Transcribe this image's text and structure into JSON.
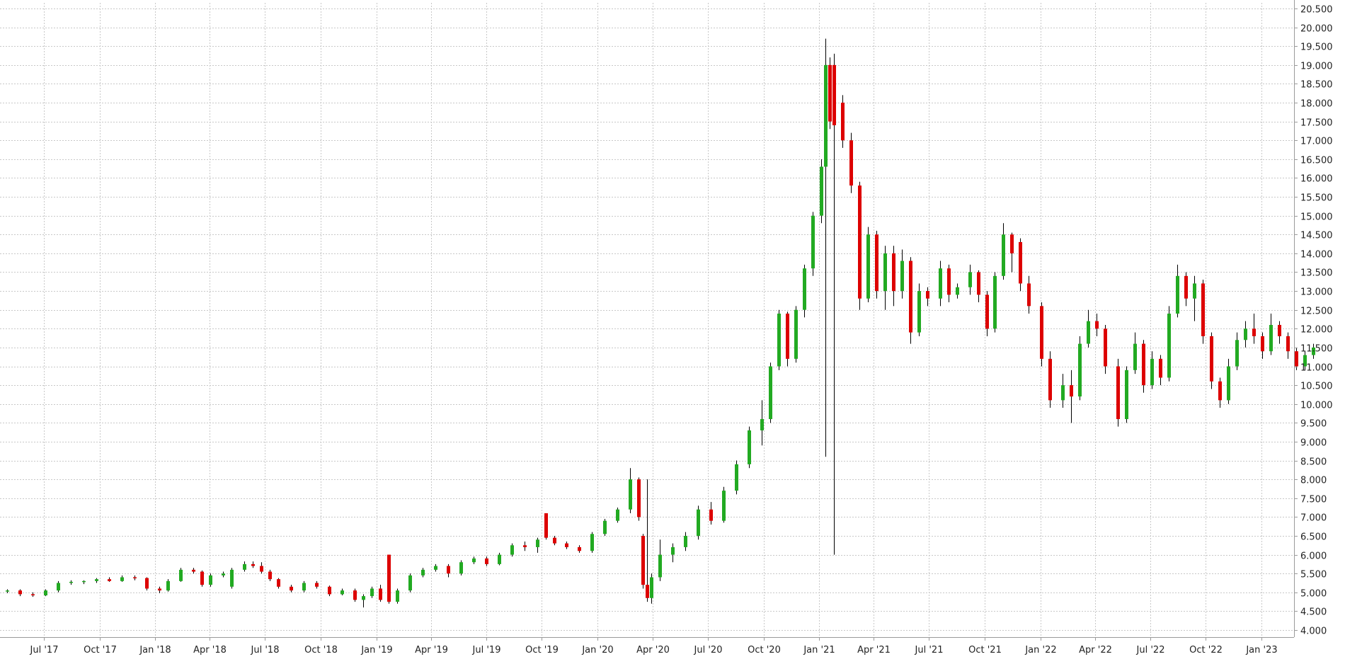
{
  "chart_data": {
    "type": "candlestick",
    "title": "",
    "xlabel": "",
    "ylabel": "",
    "ylim": [
      3.8,
      20.6
    ],
    "grid": true,
    "colors": {
      "up": "#22aa22",
      "down": "#dd0000",
      "wick": "#000000"
    },
    "yticks": [
      "4.000",
      "4.500",
      "5.000",
      "5.500",
      "6.000",
      "6.500",
      "7.000",
      "7.500",
      "8.000",
      "8.500",
      "9.000",
      "9.500",
      "10.000",
      "10.500",
      "11.000",
      "11.500",
      "12.000",
      "12.500",
      "13.000",
      "13.500",
      "14.000",
      "14.500",
      "15.000",
      "15.500",
      "16.000",
      "16.500",
      "17.000",
      "17.500",
      "18.000",
      "18.500",
      "19.000",
      "19.500",
      "20.000",
      "20.500"
    ],
    "xticks": [
      "Jul '17",
      "Oct '17",
      "Jan '18",
      "Apr '18",
      "Jul '18",
      "Oct '18",
      "Jan '19",
      "Apr '19",
      "Jul '19",
      "Oct '19",
      "Jan '20",
      "Apr '20",
      "Jul '20",
      "Oct '20",
      "Jan '21",
      "Apr '21",
      "Jul '21",
      "Oct '21",
      "Jan '22",
      "Apr '22",
      "Jul '22",
      "Oct '22",
      "Jan '23"
    ],
    "xtick_dates": [
      "2017-07-01",
      "2017-10-01",
      "2018-01-01",
      "2018-04-01",
      "2018-07-01",
      "2018-10-01",
      "2019-01-01",
      "2019-04-01",
      "2019-07-01",
      "2019-10-01",
      "2020-01-01",
      "2020-04-01",
      "2020-07-01",
      "2020-10-01",
      "2021-01-01",
      "2021-04-01",
      "2021-07-01",
      "2021-10-01",
      "2022-01-01",
      "2022-04-01",
      "2022-07-01",
      "2022-10-01",
      "2023-01-01"
    ],
    "date_range": [
      "2017-05-01",
      "2023-03-27"
    ],
    "candles": [
      {
        "d": "2017-05-01",
        "o": 5.02,
        "h": 5.08,
        "l": 4.98,
        "c": 5.05
      },
      {
        "d": "2017-05-22",
        "o": 5.05,
        "h": 5.08,
        "l": 4.9,
        "c": 4.95
      },
      {
        "d": "2017-06-12",
        "o": 4.95,
        "h": 5.0,
        "l": 4.88,
        "c": 4.92
      },
      {
        "d": "2017-07-03",
        "o": 4.92,
        "h": 5.08,
        "l": 4.9,
        "c": 5.05
      },
      {
        "d": "2017-07-24",
        "o": 5.05,
        "h": 5.3,
        "l": 5.0,
        "c": 5.25
      },
      {
        "d": "2017-08-14",
        "o": 5.25,
        "h": 5.32,
        "l": 5.2,
        "c": 5.28
      },
      {
        "d": "2017-09-04",
        "o": 5.28,
        "h": 5.32,
        "l": 5.22,
        "c": 5.3
      },
      {
        "d": "2017-09-25",
        "o": 5.3,
        "h": 5.38,
        "l": 5.25,
        "c": 5.35
      },
      {
        "d": "2017-10-16",
        "o": 5.35,
        "h": 5.4,
        "l": 5.28,
        "c": 5.3
      },
      {
        "d": "2017-11-06",
        "o": 5.3,
        "h": 5.45,
        "l": 5.28,
        "c": 5.4
      },
      {
        "d": "2017-11-27",
        "o": 5.4,
        "h": 5.45,
        "l": 5.32,
        "c": 5.38
      },
      {
        "d": "2017-12-18",
        "o": 5.38,
        "h": 5.4,
        "l": 5.05,
        "c": 5.1
      },
      {
        "d": "2018-01-08",
        "o": 5.1,
        "h": 5.15,
        "l": 4.98,
        "c": 5.05
      },
      {
        "d": "2018-01-22",
        "o": 5.05,
        "h": 5.35,
        "l": 5.02,
        "c": 5.3
      },
      {
        "d": "2018-02-12",
        "o": 5.3,
        "h": 5.65,
        "l": 5.28,
        "c": 5.6
      },
      {
        "d": "2018-03-05",
        "o": 5.6,
        "h": 5.65,
        "l": 5.5,
        "c": 5.55
      },
      {
        "d": "2018-03-19",
        "o": 5.55,
        "h": 5.58,
        "l": 5.15,
        "c": 5.2
      },
      {
        "d": "2018-04-02",
        "o": 5.2,
        "h": 5.5,
        "l": 5.15,
        "c": 5.45
      },
      {
        "d": "2018-04-23",
        "o": 5.45,
        "h": 5.55,
        "l": 5.4,
        "c": 5.5
      },
      {
        "d": "2018-05-07",
        "o": 5.15,
        "h": 5.65,
        "l": 5.1,
        "c": 5.6
      },
      {
        "d": "2018-05-28",
        "o": 5.6,
        "h": 5.82,
        "l": 5.55,
        "c": 5.75
      },
      {
        "d": "2018-06-11",
        "o": 5.75,
        "h": 5.82,
        "l": 5.65,
        "c": 5.7
      },
      {
        "d": "2018-06-25",
        "o": 5.7,
        "h": 5.8,
        "l": 5.5,
        "c": 5.55
      },
      {
        "d": "2018-07-09",
        "o": 5.55,
        "h": 5.6,
        "l": 5.3,
        "c": 5.35
      },
      {
        "d": "2018-07-23",
        "o": 5.35,
        "h": 5.38,
        "l": 5.1,
        "c": 5.15
      },
      {
        "d": "2018-08-13",
        "o": 5.15,
        "h": 5.2,
        "l": 5.0,
        "c": 5.05
      },
      {
        "d": "2018-09-03",
        "o": 5.05,
        "h": 5.3,
        "l": 5.0,
        "c": 5.25
      },
      {
        "d": "2018-09-24",
        "o": 5.25,
        "h": 5.3,
        "l": 5.1,
        "c": 5.15
      },
      {
        "d": "2018-10-15",
        "o": 5.15,
        "h": 5.18,
        "l": 4.9,
        "c": 4.95
      },
      {
        "d": "2018-11-05",
        "o": 4.95,
        "h": 5.1,
        "l": 4.92,
        "c": 5.05
      },
      {
        "d": "2018-11-26",
        "o": 5.05,
        "h": 5.1,
        "l": 4.75,
        "c": 4.8
      },
      {
        "d": "2018-12-10",
        "o": 4.8,
        "h": 4.95,
        "l": 4.6,
        "c": 4.9
      },
      {
        "d": "2018-12-24",
        "o": 4.9,
        "h": 5.15,
        "l": 4.85,
        "c": 5.1
      },
      {
        "d": "2019-01-07",
        "o": 5.1,
        "h": 5.2,
        "l": 4.75,
        "c": 4.8
      },
      {
        "d": "2019-01-21",
        "o": 6.0,
        "h": 6.0,
        "l": 4.7,
        "c": 4.75
      },
      {
        "d": "2019-02-04",
        "o": 4.75,
        "h": 5.1,
        "l": 4.7,
        "c": 5.05
      },
      {
        "d": "2019-02-25",
        "o": 5.05,
        "h": 5.5,
        "l": 5.0,
        "c": 5.45
      },
      {
        "d": "2019-03-18",
        "o": 5.45,
        "h": 5.65,
        "l": 5.4,
        "c": 5.6
      },
      {
        "d": "2019-04-08",
        "o": 5.6,
        "h": 5.75,
        "l": 5.55,
        "c": 5.7
      },
      {
        "d": "2019-04-29",
        "o": 5.7,
        "h": 5.75,
        "l": 5.4,
        "c": 5.5
      },
      {
        "d": "2019-05-20",
        "o": 5.5,
        "h": 5.85,
        "l": 5.45,
        "c": 5.8
      },
      {
        "d": "2019-06-10",
        "o": 5.8,
        "h": 5.95,
        "l": 5.75,
        "c": 5.9
      },
      {
        "d": "2019-07-01",
        "o": 5.9,
        "h": 5.95,
        "l": 5.7,
        "c": 5.75
      },
      {
        "d": "2019-07-22",
        "o": 5.75,
        "h": 6.05,
        "l": 5.72,
        "c": 6.0
      },
      {
        "d": "2019-08-12",
        "o": 6.0,
        "h": 6.3,
        "l": 5.95,
        "c": 6.25
      },
      {
        "d": "2019-09-02",
        "o": 6.25,
        "h": 6.35,
        "l": 6.1,
        "c": 6.2
      },
      {
        "d": "2019-09-23",
        "o": 6.2,
        "h": 6.45,
        "l": 6.05,
        "c": 6.4
      },
      {
        "d": "2019-10-07",
        "o": 7.1,
        "h": 7.1,
        "l": 6.4,
        "c": 6.45
      },
      {
        "d": "2019-10-21",
        "o": 6.45,
        "h": 6.5,
        "l": 6.25,
        "c": 6.3
      },
      {
        "d": "2019-11-11",
        "o": 6.3,
        "h": 6.35,
        "l": 6.15,
        "c": 6.2
      },
      {
        "d": "2019-12-02",
        "o": 6.2,
        "h": 6.25,
        "l": 6.05,
        "c": 6.1
      },
      {
        "d": "2019-12-23",
        "o": 6.1,
        "h": 6.6,
        "l": 6.05,
        "c": 6.55
      },
      {
        "d": "2020-01-13",
        "o": 6.55,
        "h": 6.95,
        "l": 6.5,
        "c": 6.9
      },
      {
        "d": "2020-02-03",
        "o": 6.9,
        "h": 7.25,
        "l": 6.85,
        "c": 7.2
      },
      {
        "d": "2020-02-24",
        "o": 7.2,
        "h": 8.3,
        "l": 7.1,
        "c": 8.0
      },
      {
        "d": "2020-03-09",
        "o": 8.0,
        "h": 8.05,
        "l": 6.9,
        "c": 7.0
      },
      {
        "d": "2020-03-16",
        "o": 6.5,
        "h": 6.55,
        "l": 5.1,
        "c": 5.2
      },
      {
        "d": "2020-03-23",
        "o": 5.2,
        "h": 8.0,
        "l": 4.75,
        "c": 4.85
      },
      {
        "d": "2020-03-30",
        "o": 4.85,
        "h": 5.5,
        "l": 4.7,
        "c": 5.4
      },
      {
        "d": "2020-04-13",
        "o": 5.4,
        "h": 6.4,
        "l": 5.3,
        "c": 6.0
      },
      {
        "d": "2020-05-04",
        "o": 6.0,
        "h": 6.3,
        "l": 5.8,
        "c": 6.2
      },
      {
        "d": "2020-05-25",
        "o": 6.2,
        "h": 6.6,
        "l": 6.1,
        "c": 6.5
      },
      {
        "d": "2020-06-15",
        "o": 6.5,
        "h": 7.3,
        "l": 6.4,
        "c": 7.2
      },
      {
        "d": "2020-07-06",
        "o": 7.2,
        "h": 7.4,
        "l": 6.8,
        "c": 6.9
      },
      {
        "d": "2020-07-27",
        "o": 6.9,
        "h": 7.8,
        "l": 6.85,
        "c": 7.7
      },
      {
        "d": "2020-08-17",
        "o": 7.7,
        "h": 8.5,
        "l": 7.6,
        "c": 8.4
      },
      {
        "d": "2020-09-07",
        "o": 8.4,
        "h": 9.4,
        "l": 8.3,
        "c": 9.3
      },
      {
        "d": "2020-09-28",
        "o": 9.3,
        "h": 10.1,
        "l": 8.9,
        "c": 9.6
      },
      {
        "d": "2020-10-12",
        "o": 9.6,
        "h": 11.1,
        "l": 9.5,
        "c": 11.0
      },
      {
        "d": "2020-10-26",
        "o": 11.0,
        "h": 12.5,
        "l": 10.9,
        "c": 12.4
      },
      {
        "d": "2020-11-09",
        "o": 12.4,
        "h": 12.45,
        "l": 11.0,
        "c": 11.2
      },
      {
        "d": "2020-11-23",
        "o": 11.2,
        "h": 12.6,
        "l": 11.1,
        "c": 12.5
      },
      {
        "d": "2020-12-07",
        "o": 12.5,
        "h": 13.7,
        "l": 12.3,
        "c": 13.6
      },
      {
        "d": "2020-12-21",
        "o": 13.6,
        "h": 15.1,
        "l": 13.4,
        "c": 15.0
      },
      {
        "d": "2021-01-04",
        "o": 15.0,
        "h": 16.5,
        "l": 14.8,
        "c": 16.3
      },
      {
        "d": "2021-01-11",
        "o": 16.3,
        "h": 19.7,
        "l": 8.6,
        "c": 19.0
      },
      {
        "d": "2021-01-18",
        "o": 19.0,
        "h": 19.2,
        "l": 17.3,
        "c": 17.5
      },
      {
        "d": "2021-01-25",
        "o": 19.0,
        "h": 19.3,
        "l": 6.0,
        "c": 17.4
      },
      {
        "d": "2021-02-08",
        "o": 18.0,
        "h": 18.2,
        "l": 16.8,
        "c": 17.0
      },
      {
        "d": "2021-02-22",
        "o": 17.0,
        "h": 17.2,
        "l": 15.6,
        "c": 15.8
      },
      {
        "d": "2021-03-08",
        "o": 15.8,
        "h": 15.9,
        "l": 12.5,
        "c": 12.8
      },
      {
        "d": "2021-03-22",
        "o": 12.8,
        "h": 14.7,
        "l": 12.7,
        "c": 14.5
      },
      {
        "d": "2021-04-05",
        "o": 14.5,
        "h": 14.6,
        "l": 12.8,
        "c": 13.0
      },
      {
        "d": "2021-04-19",
        "o": 13.0,
        "h": 14.2,
        "l": 12.5,
        "c": 14.0
      },
      {
        "d": "2021-05-03",
        "o": 14.0,
        "h": 14.2,
        "l": 12.6,
        "c": 13.0
      },
      {
        "d": "2021-05-17",
        "o": 13.0,
        "h": 14.1,
        "l": 12.8,
        "c": 13.8
      },
      {
        "d": "2021-05-31",
        "o": 13.8,
        "h": 13.9,
        "l": 11.6,
        "c": 11.9
      },
      {
        "d": "2021-06-14",
        "o": 11.9,
        "h": 13.2,
        "l": 11.8,
        "c": 13.0
      },
      {
        "d": "2021-06-28",
        "o": 13.0,
        "h": 13.1,
        "l": 12.6,
        "c": 12.8
      },
      {
        "d": "2021-07-19",
        "o": 12.8,
        "h": 13.8,
        "l": 12.6,
        "c": 13.6
      },
      {
        "d": "2021-08-02",
        "o": 13.6,
        "h": 13.7,
        "l": 12.7,
        "c": 12.9
      },
      {
        "d": "2021-08-16",
        "o": 12.9,
        "h": 13.2,
        "l": 12.8,
        "c": 13.1
      },
      {
        "d": "2021-09-06",
        "o": 13.1,
        "h": 13.7,
        "l": 12.9,
        "c": 13.5
      },
      {
        "d": "2021-09-20",
        "o": 13.5,
        "h": 13.55,
        "l": 12.7,
        "c": 12.9
      },
      {
        "d": "2021-10-04",
        "o": 12.9,
        "h": 13.0,
        "l": 11.8,
        "c": 12.0
      },
      {
        "d": "2021-10-18",
        "o": 12.0,
        "h": 13.5,
        "l": 11.9,
        "c": 13.4
      },
      {
        "d": "2021-11-01",
        "o": 13.4,
        "h": 14.8,
        "l": 13.3,
        "c": 14.5
      },
      {
        "d": "2021-11-15",
        "o": 14.5,
        "h": 14.55,
        "l": 13.5,
        "c": 14.0
      },
      {
        "d": "2021-11-29",
        "o": 14.3,
        "h": 14.4,
        "l": 13.0,
        "c": 13.2
      },
      {
        "d": "2021-12-13",
        "o": 13.2,
        "h": 13.4,
        "l": 12.4,
        "c": 12.6
      },
      {
        "d": "2022-01-03",
        "o": 12.6,
        "h": 12.7,
        "l": 11.0,
        "c": 11.2
      },
      {
        "d": "2022-01-17",
        "o": 11.2,
        "h": 11.4,
        "l": 9.9,
        "c": 10.1
      },
      {
        "d": "2022-02-07",
        "o": 10.1,
        "h": 10.8,
        "l": 9.9,
        "c": 10.5
      },
      {
        "d": "2022-02-21",
        "o": 10.5,
        "h": 10.9,
        "l": 9.5,
        "c": 10.2
      },
      {
        "d": "2022-03-07",
        "o": 10.2,
        "h": 11.8,
        "l": 10.1,
        "c": 11.6
      },
      {
        "d": "2022-03-21",
        "o": 11.6,
        "h": 12.5,
        "l": 11.5,
        "c": 12.2
      },
      {
        "d": "2022-04-04",
        "o": 12.2,
        "h": 12.4,
        "l": 11.8,
        "c": 12.0
      },
      {
        "d": "2022-04-18",
        "o": 12.0,
        "h": 12.1,
        "l": 10.8,
        "c": 11.0
      },
      {
        "d": "2022-05-09",
        "o": 11.0,
        "h": 11.2,
        "l": 9.4,
        "c": 9.6
      },
      {
        "d": "2022-05-23",
        "o": 9.6,
        "h": 11.0,
        "l": 9.5,
        "c": 10.9
      },
      {
        "d": "2022-06-06",
        "o": 10.9,
        "h": 11.9,
        "l": 10.8,
        "c": 11.6
      },
      {
        "d": "2022-06-20",
        "o": 11.6,
        "h": 11.7,
        "l": 10.3,
        "c": 10.5
      },
      {
        "d": "2022-07-04",
        "o": 10.5,
        "h": 11.4,
        "l": 10.4,
        "c": 11.2
      },
      {
        "d": "2022-07-18",
        "o": 11.2,
        "h": 11.3,
        "l": 10.5,
        "c": 10.7
      },
      {
        "d": "2022-08-01",
        "o": 10.7,
        "h": 12.6,
        "l": 10.6,
        "c": 12.4
      },
      {
        "d": "2022-08-15",
        "o": 12.4,
        "h": 13.7,
        "l": 12.3,
        "c": 13.4
      },
      {
        "d": "2022-08-29",
        "o": 13.4,
        "h": 13.5,
        "l": 12.6,
        "c": 12.8
      },
      {
        "d": "2022-09-12",
        "o": 12.8,
        "h": 13.4,
        "l": 12.2,
        "c": 13.2
      },
      {
        "d": "2022-09-26",
        "o": 13.2,
        "h": 13.3,
        "l": 11.6,
        "c": 11.8
      },
      {
        "d": "2022-10-10",
        "o": 11.8,
        "h": 11.9,
        "l": 10.4,
        "c": 10.6
      },
      {
        "d": "2022-10-24",
        "o": 10.6,
        "h": 10.7,
        "l": 9.9,
        "c": 10.1
      },
      {
        "d": "2022-11-07",
        "o": 10.1,
        "h": 11.2,
        "l": 10.0,
        "c": 11.0
      },
      {
        "d": "2022-11-21",
        "o": 11.0,
        "h": 11.9,
        "l": 10.9,
        "c": 11.7
      },
      {
        "d": "2022-12-05",
        "o": 11.7,
        "h": 12.2,
        "l": 11.5,
        "c": 12.0
      },
      {
        "d": "2022-12-19",
        "o": 12.0,
        "h": 12.4,
        "l": 11.6,
        "c": 11.8
      },
      {
        "d": "2023-01-02",
        "o": 11.8,
        "h": 11.9,
        "l": 11.2,
        "c": 11.4
      },
      {
        "d": "2023-01-16",
        "o": 11.4,
        "h": 12.4,
        "l": 11.3,
        "c": 12.1
      },
      {
        "d": "2023-01-30",
        "o": 12.1,
        "h": 12.2,
        "l": 11.6,
        "c": 11.8
      },
      {
        "d": "2023-02-13",
        "o": 11.8,
        "h": 11.9,
        "l": 11.2,
        "c": 11.4
      },
      {
        "d": "2023-02-27",
        "o": 11.4,
        "h": 11.5,
        "l": 10.9,
        "c": 11.0
      },
      {
        "d": "2023-03-13",
        "o": 11.0,
        "h": 11.4,
        "l": 10.9,
        "c": 11.3
      },
      {
        "d": "2023-03-27",
        "o": 11.3,
        "h": 11.6,
        "l": 11.2,
        "c": 11.5
      }
    ]
  }
}
